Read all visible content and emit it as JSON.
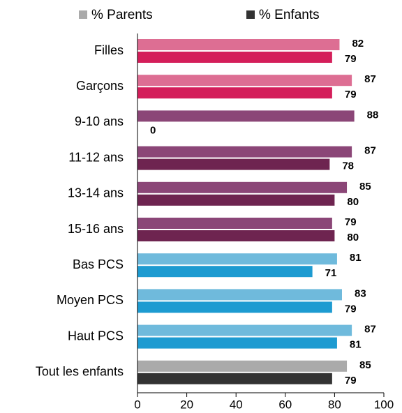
{
  "chart_data": {
    "type": "bar",
    "orientation": "horizontal",
    "categories": [
      "Filles",
      "Garçons",
      "9-10 ans",
      "11-12 ans",
      "13-14 ans",
      "15-16 ans",
      "Bas PCS",
      "Moyen PCS",
      "Haut PCS",
      "Tout les enfants"
    ],
    "series": [
      {
        "name": "% Parents",
        "color": "#aaaaaa",
        "values": [
          82,
          87,
          88,
          87,
          85,
          79,
          81,
          83,
          87,
          85
        ],
        "colors": [
          "#dd6e93",
          "#dd6e93",
          "#8b4677",
          "#8b4677",
          "#8b4677",
          "#8b4677",
          "#6fbadc",
          "#6fbadc",
          "#6fbadc",
          "#aaaaaa"
        ]
      },
      {
        "name": "% Enfants",
        "color": "#333333",
        "values": [
          79,
          79,
          0,
          78,
          80,
          80,
          71,
          79,
          81,
          79
        ],
        "colors": [
          "#d41e5a",
          "#d41e5a",
          "#6e2450",
          "#6e2450",
          "#6e2450",
          "#6e2450",
          "#1d9bd1",
          "#1d9bd1",
          "#1d9bd1",
          "#333333"
        ]
      }
    ],
    "xlim": [
      0,
      100
    ],
    "xticks": [
      0,
      20,
      40,
      60,
      80,
      100
    ],
    "legend": "top"
  }
}
